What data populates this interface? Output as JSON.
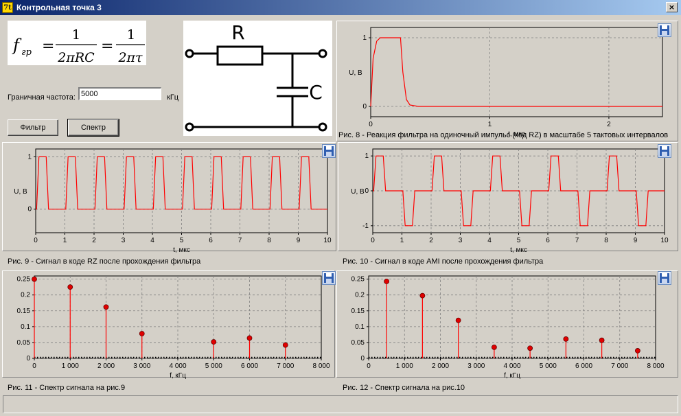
{
  "window": {
    "title": "Контрольная точка 3",
    "app_icon": "7t-app-icon",
    "close_label": "×"
  },
  "formula": {
    "f_symbol": "f",
    "f_subscript": "гр",
    "num1": "1",
    "den1": "2πRC",
    "num2": "1",
    "den2": "2πτ"
  },
  "circuit": {
    "resistor_label": "R",
    "capacitor_label": "C"
  },
  "controls": {
    "cutoff_label": "Граничная частота:",
    "cutoff_value": "5000",
    "cutoff_unit": "кГц",
    "filter_button": "Фильтр",
    "spectrum_button": "Спектр"
  },
  "captions": {
    "fig8": "Рис. 8 - Реакция фильтра на одиночный импульс (код RZ) в масштабе 5 тактовых интервалов",
    "fig9": "Рис. 9 - Сигнал в коде RZ после прохождения фильтра",
    "fig10": "Рис. 10 - Сигнал в коде AMI после прохождения фильтра",
    "fig11": "Рис. 11 - Спектр сигнала на рис.9",
    "fig12": "Рис. 12 - Спектр сигнала на рис.10"
  },
  "colors": {
    "trace": "#ff0000",
    "grid": "#808080",
    "stem_marker": "#e00000"
  },
  "chart_data": [
    {
      "id": "fig8",
      "type": "line",
      "xlabel": "t, мкс",
      "ylabel": "U, В",
      "xlim": [
        0,
        2.45
      ],
      "ylim": [
        -0.15,
        1.15
      ],
      "xticks": [
        "0",
        "1",
        "2"
      ],
      "yticks": [
        "0",
        "1"
      ],
      "grid": true,
      "series": [
        {
          "x": [
            0,
            0.02,
            0.05,
            0.08,
            0.1,
            0.25,
            0.27,
            0.3,
            0.33,
            0.4,
            2.45
          ],
          "y": [
            0,
            0.7,
            0.95,
            1.0,
            1.0,
            1.0,
            0.5,
            0.1,
            0.02,
            0,
            0
          ]
        }
      ]
    },
    {
      "id": "fig9",
      "type": "line",
      "xlabel": "t, мкс",
      "ylabel": "U, В",
      "xlim": [
        0,
        10
      ],
      "ylim": [
        -0.45,
        1.15
      ],
      "xticks": [
        "0",
        "1",
        "2",
        "3",
        "4",
        "5",
        "6",
        "7",
        "8",
        "9",
        "10"
      ],
      "yticks": [
        "0",
        "1"
      ],
      "grid": true,
      "pattern": {
        "code": "RZ",
        "bits": [
          1,
          1,
          1,
          1,
          1,
          1,
          1,
          1,
          1,
          1
        ],
        "low": 0
      }
    },
    {
      "id": "fig10",
      "type": "line",
      "xlabel": "t, мкс",
      "ylabel": "U, В",
      "xlim": [
        0,
        10
      ],
      "ylim": [
        -1.2,
        1.2
      ],
      "xticks": [
        "0",
        "1",
        "2",
        "3",
        "4",
        "5",
        "6",
        "7",
        "8",
        "9",
        "10"
      ],
      "yticks": [
        "-1",
        "0",
        "1"
      ],
      "grid": true,
      "pattern": {
        "code": "AMI",
        "bits": [
          1,
          -1,
          1,
          -1,
          1,
          -1,
          1,
          -1,
          1,
          -1
        ]
      }
    },
    {
      "id": "fig11",
      "type": "stem",
      "xlabel": "f, кГц",
      "xlim": [
        0,
        8000
      ],
      "ylim": [
        0,
        0.26
      ],
      "xticks": [
        "0",
        "1 000",
        "2 000",
        "3 000",
        "4 000",
        "5 000",
        "6 000",
        "7 000",
        "8 000"
      ],
      "yticks": [
        "0",
        "0.05",
        "0.1",
        "0.15",
        "0.2",
        "0.25"
      ],
      "grid": true,
      "x": [
        0,
        1000,
        2000,
        3000,
        5000,
        6000,
        7000
      ],
      "y": [
        0.25,
        0.225,
        0.162,
        0.078,
        0.052,
        0.064,
        0.042
      ]
    },
    {
      "id": "fig12",
      "type": "stem",
      "xlabel": "f, кГц",
      "xlim": [
        0,
        8000
      ],
      "ylim": [
        0,
        0.26
      ],
      "xticks": [
        "0",
        "1 000",
        "2 000",
        "3 000",
        "4 000",
        "5 000",
        "6 000",
        "7 000",
        "8 000"
      ],
      "yticks": [
        "0",
        "0.05",
        "0.1",
        "0.15",
        "0.2",
        "0.25"
      ],
      "grid": true,
      "x": [
        500,
        1500,
        2500,
        3500,
        4500,
        5500,
        6500,
        7500
      ],
      "y": [
        0.243,
        0.198,
        0.12,
        0.035,
        0.032,
        0.061,
        0.057,
        0.024
      ]
    }
  ]
}
